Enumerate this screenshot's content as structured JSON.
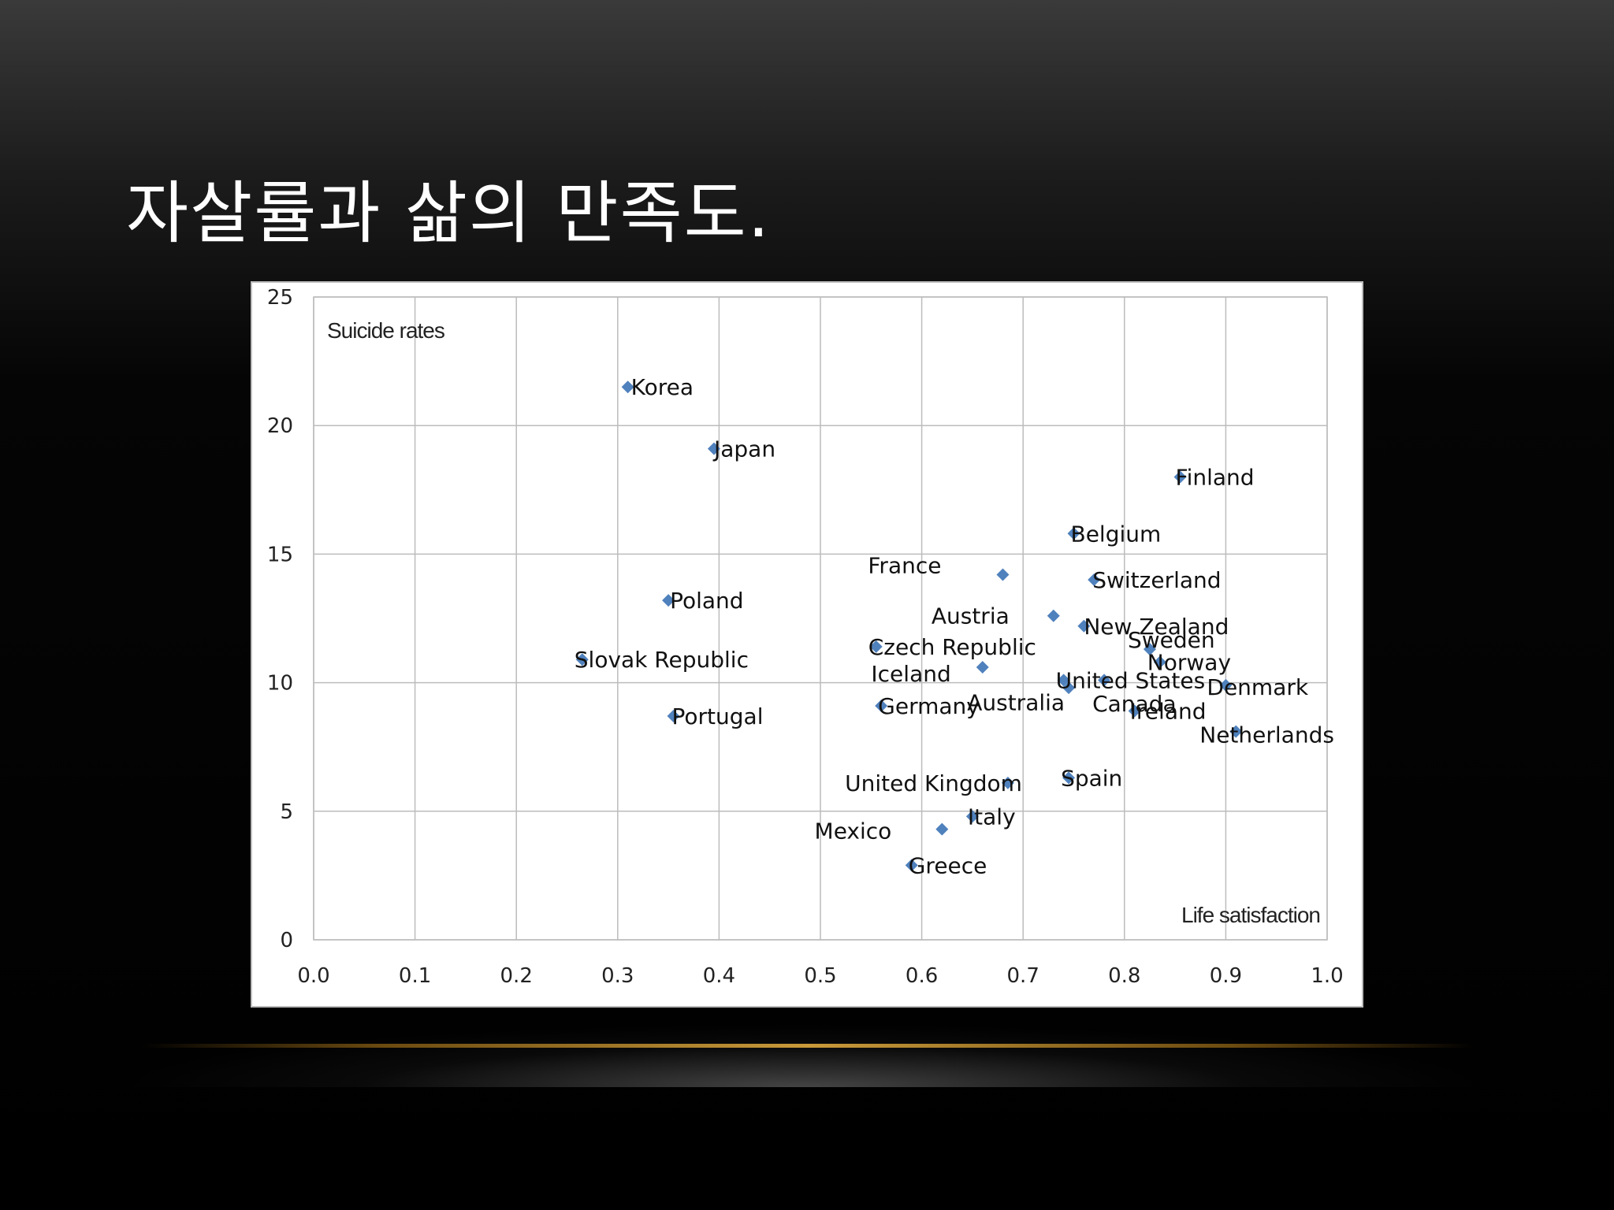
{
  "slide": {
    "title": "자살률과 삶의 만족도."
  },
  "colors": {
    "marker": "#4f81bd",
    "grid": "#bcbcbc",
    "background": "#000000",
    "accent": "#c99a3a"
  },
  "chart_data": {
    "type": "scatter",
    "title": "",
    "ylabel": "Suicide rates",
    "xlabel": "Life satisfaction",
    "xlim": [
      0.0,
      1.0
    ],
    "ylim": [
      0,
      25
    ],
    "x_ticks": [
      "0.0",
      "0.1",
      "0.2",
      "0.3",
      "0.4",
      "0.5",
      "0.6",
      "0.7",
      "0.8",
      "0.9",
      "1.0"
    ],
    "y_ticks": [
      "0",
      "5",
      "10",
      "15",
      "20",
      "25"
    ],
    "grid": true,
    "points": [
      {
        "label": "Korea",
        "x": 0.31,
        "y": 21.5
      },
      {
        "label": "Japan",
        "x": 0.395,
        "y": 19.1
      },
      {
        "label": "Finland",
        "x": 0.855,
        "y": 18.0
      },
      {
        "label": "Belgium",
        "x": 0.75,
        "y": 15.8
      },
      {
        "label": "France",
        "x": 0.68,
        "y": 14.2
      },
      {
        "label": "Switzerland",
        "x": 0.77,
        "y": 14.0
      },
      {
        "label": "Poland",
        "x": 0.35,
        "y": 13.2
      },
      {
        "label": "Austria",
        "x": 0.73,
        "y": 12.6
      },
      {
        "label": "New Zealand",
        "x": 0.76,
        "y": 12.2
      },
      {
        "label": "Czech Republic",
        "x": 0.555,
        "y": 11.4
      },
      {
        "label": "Sweden",
        "x": 0.825,
        "y": 11.3
      },
      {
        "label": "Slovak Republic",
        "x": 0.265,
        "y": 10.9
      },
      {
        "label": "Norway",
        "x": 0.835,
        "y": 10.8
      },
      {
        "label": "Iceland",
        "x": 0.66,
        "y": 10.6
      },
      {
        "label": "United States",
        "x": 0.74,
        "y": 10.1
      },
      {
        "label": "Canada",
        "x": 0.745,
        "y": 9.8
      },
      {
        "label": "Australia",
        "x": 0.78,
        "y": 10.1
      },
      {
        "label": "Denmark",
        "x": 0.9,
        "y": 9.9
      },
      {
        "label": "Germany",
        "x": 0.56,
        "y": 9.1
      },
      {
        "label": "Ireland",
        "x": 0.81,
        "y": 8.9
      },
      {
        "label": "Portugal",
        "x": 0.355,
        "y": 8.7
      },
      {
        "label": "Netherlands",
        "x": 0.91,
        "y": 8.1
      },
      {
        "label": "Spain",
        "x": 0.745,
        "y": 6.3
      },
      {
        "label": "United Kingdom",
        "x": 0.685,
        "y": 6.1
      },
      {
        "label": "Italy",
        "x": 0.65,
        "y": 4.8
      },
      {
        "label": "Mexico",
        "x": 0.62,
        "y": 4.3
      },
      {
        "label": "Greece",
        "x": 0.59,
        "y": 2.9
      }
    ]
  }
}
